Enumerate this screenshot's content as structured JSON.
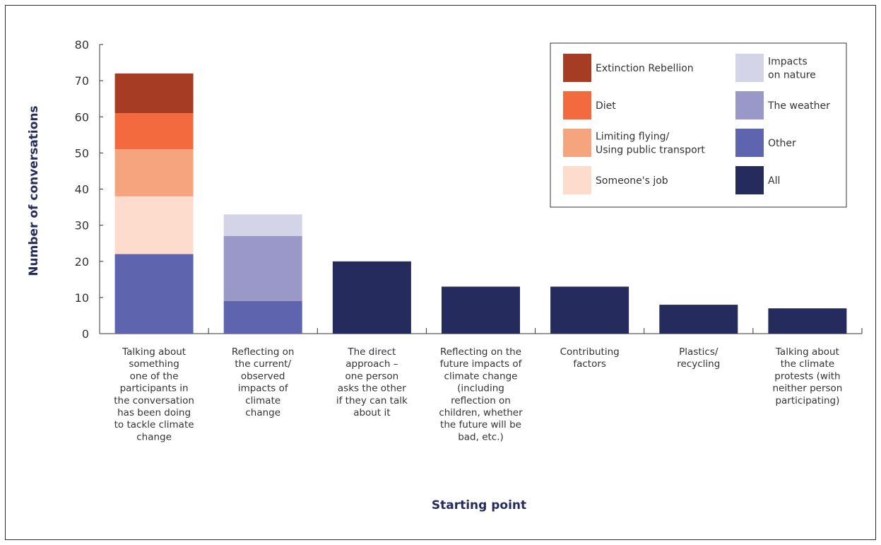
{
  "chart_data": {
    "type": "bar",
    "stacked": true,
    "xlabel": "Starting point",
    "ylabel": "Number of conversations",
    "ylim": [
      0,
      80
    ],
    "yticks": [
      0,
      10,
      20,
      30,
      40,
      50,
      60,
      70,
      80
    ],
    "grid": false,
    "legend_position": "top-right",
    "categories": [
      "Talking about something one of the participants in the conversation has been doing to tackle climate change",
      "Reflecting on the current/ observed impacts of climate change",
      "The direct approach – one person asks the other if they can talk about it",
      "Reflecting on the future impacts of climate change (including reflection on children, whether the future will be bad, etc.)",
      "Contributing factors",
      "Plastics/ recycling",
      "Talking about the climate protests (with neither person participating)"
    ],
    "category_lines": [
      [
        "Talking about",
        "something",
        "one of the",
        "participants in",
        "the conversation",
        "has been doing",
        "to tackle climate",
        "change"
      ],
      [
        "Reflecting on",
        "the current/",
        "observed",
        "impacts of",
        "climate",
        "change"
      ],
      [
        "The direct",
        "approach –",
        "one person",
        "asks the other",
        "if they can talk",
        "about it"
      ],
      [
        "Reflecting on the",
        "future impacts of",
        "climate change",
        "(including",
        "reflection on",
        "children, whether",
        "the future will be",
        "bad, etc.)"
      ],
      [
        "Contributing",
        "factors"
      ],
      [
        "Plastics/",
        "recycling"
      ],
      [
        "Talking about",
        "the climate",
        "protests (with",
        "neither person",
        "participating)"
      ]
    ],
    "series": [
      {
        "name": "Other",
        "color": "#5e65ae",
        "values": [
          22,
          9,
          0,
          0,
          0,
          0,
          0
        ]
      },
      {
        "name": "Someone's job",
        "color": "#fddccd",
        "values": [
          16,
          0,
          0,
          0,
          0,
          0,
          0
        ]
      },
      {
        "name": "Limiting flying/ Using public transport",
        "color": "#f6a47d",
        "values": [
          13,
          0,
          0,
          0,
          0,
          0,
          0
        ]
      },
      {
        "name": "Diet",
        "color": "#f26a3d",
        "values": [
          10,
          0,
          0,
          0,
          0,
          0,
          0
        ]
      },
      {
        "name": "Extinction Rebellion",
        "color": "#a63c24",
        "values": [
          11,
          0,
          0,
          0,
          0,
          0,
          0
        ]
      },
      {
        "name": "The weather",
        "color": "#9998c9",
        "values": [
          0,
          18,
          0,
          0,
          0,
          0,
          0
        ]
      },
      {
        "name": "Impacts on nature",
        "color": "#d4d4e8",
        "values": [
          0,
          6,
          0,
          0,
          0,
          0,
          0
        ]
      },
      {
        "name": "All",
        "color": "#262b5e",
        "values": [
          0,
          0,
          20,
          13,
          13,
          8,
          7
        ]
      }
    ],
    "legend": [
      {
        "label_lines": [
          "Extinction Rebellion"
        ],
        "color": "#a63c24"
      },
      {
        "label_lines": [
          "Impacts",
          "on nature"
        ],
        "color": "#d4d4e8"
      },
      {
        "label_lines": [
          "Diet"
        ],
        "color": "#f26a3d"
      },
      {
        "label_lines": [
          "The weather"
        ],
        "color": "#9998c9"
      },
      {
        "label_lines": [
          "Limiting flying/",
          "Using public transport"
        ],
        "color": "#f6a47d"
      },
      {
        "label_lines": [
          "Other"
        ],
        "color": "#5e65ae"
      },
      {
        "label_lines": [
          "Someone's job"
        ],
        "color": "#fddccd"
      },
      {
        "label_lines": [
          "All"
        ],
        "color": "#262b5e"
      }
    ]
  }
}
